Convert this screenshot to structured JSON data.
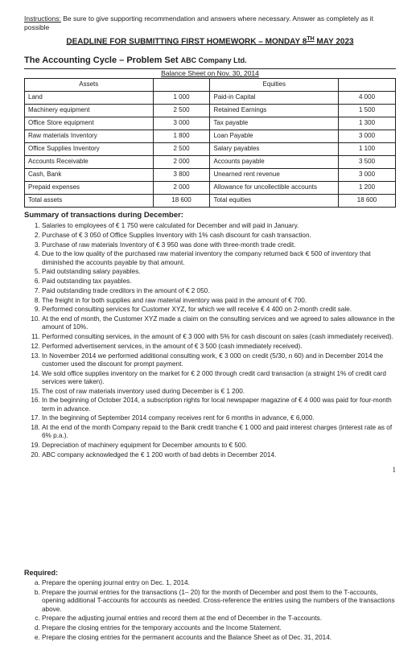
{
  "instructions": {
    "label": "Instructions:",
    "text": "Be sure to give supporting recommendation and answers where necessary.  Answer as completely as it possible"
  },
  "deadline": {
    "prefix": "DEADLINE FOR SUBMITTING FIRST HOMEWORK – MONDAY 8",
    "sup": "TH",
    "suffix": " MAY 2023"
  },
  "title": {
    "main": "The Accounting Cycle – Problem Set",
    "company": "ABC Company Ltd."
  },
  "balance_sheet": {
    "caption": "Balance Sheet on Nov. 30, 2014",
    "heads": {
      "assets": "Assets",
      "equities": "Equities"
    },
    "rows": [
      {
        "a_lbl": "Land",
        "a_val": "1 000",
        "e_lbl": "Paid-in Capital",
        "e_val": "4 000"
      },
      {
        "a_lbl": "Machinery equipment",
        "a_val": "2 500",
        "e_lbl": "Retained Earnings",
        "e_val": "1 500"
      },
      {
        "a_lbl": "Office Store equipment",
        "a_val": "3 000",
        "e_lbl": "Tax payable",
        "e_val": "1 300"
      },
      {
        "a_lbl": "Raw materials Inventory",
        "a_val": "1 800",
        "e_lbl": "Loan Payable",
        "e_val": "3 000"
      },
      {
        "a_lbl": "Office Supplies Inventory",
        "a_val": "2 500",
        "e_lbl": "Salary payables",
        "e_val": "1 100"
      },
      {
        "a_lbl": "Accounts Receivable",
        "a_val": "2 000",
        "e_lbl": "Accounts payable",
        "e_val": "3 500"
      },
      {
        "a_lbl": "Cash, Bank",
        "a_val": "3 800",
        "e_lbl": "Unearned rent revenue",
        "e_val": "3 000"
      },
      {
        "a_lbl": "Prepaid expenses",
        "a_val": "2 000",
        "e_lbl": "Allowance for uncollectible accounts",
        "e_val": "1 200"
      },
      {
        "a_lbl": "Total assets",
        "a_val": "18 600",
        "e_lbl": "Total equities",
        "e_val": "18 600"
      }
    ]
  },
  "summary_header": "Summary of transactions during December:",
  "transactions": [
    "Salaries to employees of € 1 750 were calculated for December and will paid in January.",
    "Purchase of € 3 050 of Office Supplies Inventory with 1% cash discount for cash transaction.",
    "Purchase of raw materials Inventory of € 3 950 was done with three-month trade credit.",
    "Due to the low quality of the purchased raw material inventory the company returned back € 500 of inventory that diminished the accounts payable by that amount.",
    "Paid outstanding salary payables.",
    "Paid outstanding tax payables.",
    "Paid outstanding trade creditors in the amount of € 2 050.",
    "The freight in for both supplies and raw material inventory was paid in the amount of € 700.",
    "Performed consulting services for Customer XYZ, for which we will receive € 4 400 on 2-month credit sale.",
    "At the end of month, the Customer XYZ made a claim on the consulting services and we agreed to sales allowance in the amount of 10%.",
    "Performed consulting services, in the amount of € 3 000 with 5% for cash discount on sales (cash immediately received).",
    "Performed advertisement services, in the amount of € 3 500 (cash immediately received).",
    "In November 2014 we performed additional consulting work, € 3 000 on credit (5/30, n 60) and in December 2014 the customer used the discount for prompt payment.",
    "We sold office supplies inventory on the market for € 2 000 through credit card transaction (a straight 1% of credit card services were taken).",
    "The cost of raw materials inventory used during December is € 1 200.",
    "In the beginning of October 2014, a subscription rights for local newspaper magazine of € 4 000 was paid for four-month term in advance.",
    "In the beginning of September 2014 company receives rent for 6 months in advance, € 6,000.",
    "At the end of the month Company repaid to the Bank credit tranche € 1 000 and paid interest charges (interest rate as of 6% p.a.).",
    "Depreciation of machinery equipment for December amounts to € 500.",
    "ABC company acknowledged the € 1 200 worth of bad debts in December 2014."
  ],
  "page_number": "1",
  "required_header": "Required:",
  "required": [
    "Prepare the opening journal entry on Dec. 1, 2014.",
    "Prepare the journal entries for the transactions (1– 20) for the month of December and post them to the T-accounts, opening additional T-accounts for accounts as needed. Cross-reference the entries using the numbers of the transactions above.",
    "Prepare the adjusting journal entries and record them at the end of December in the T-accounts.",
    "Prepare the closing entries for the temporary accounts and the Income Statement.",
    "Prepare the closing entries for the permanent accounts and the Balance Sheet as of Dec. 31, 2014."
  ]
}
